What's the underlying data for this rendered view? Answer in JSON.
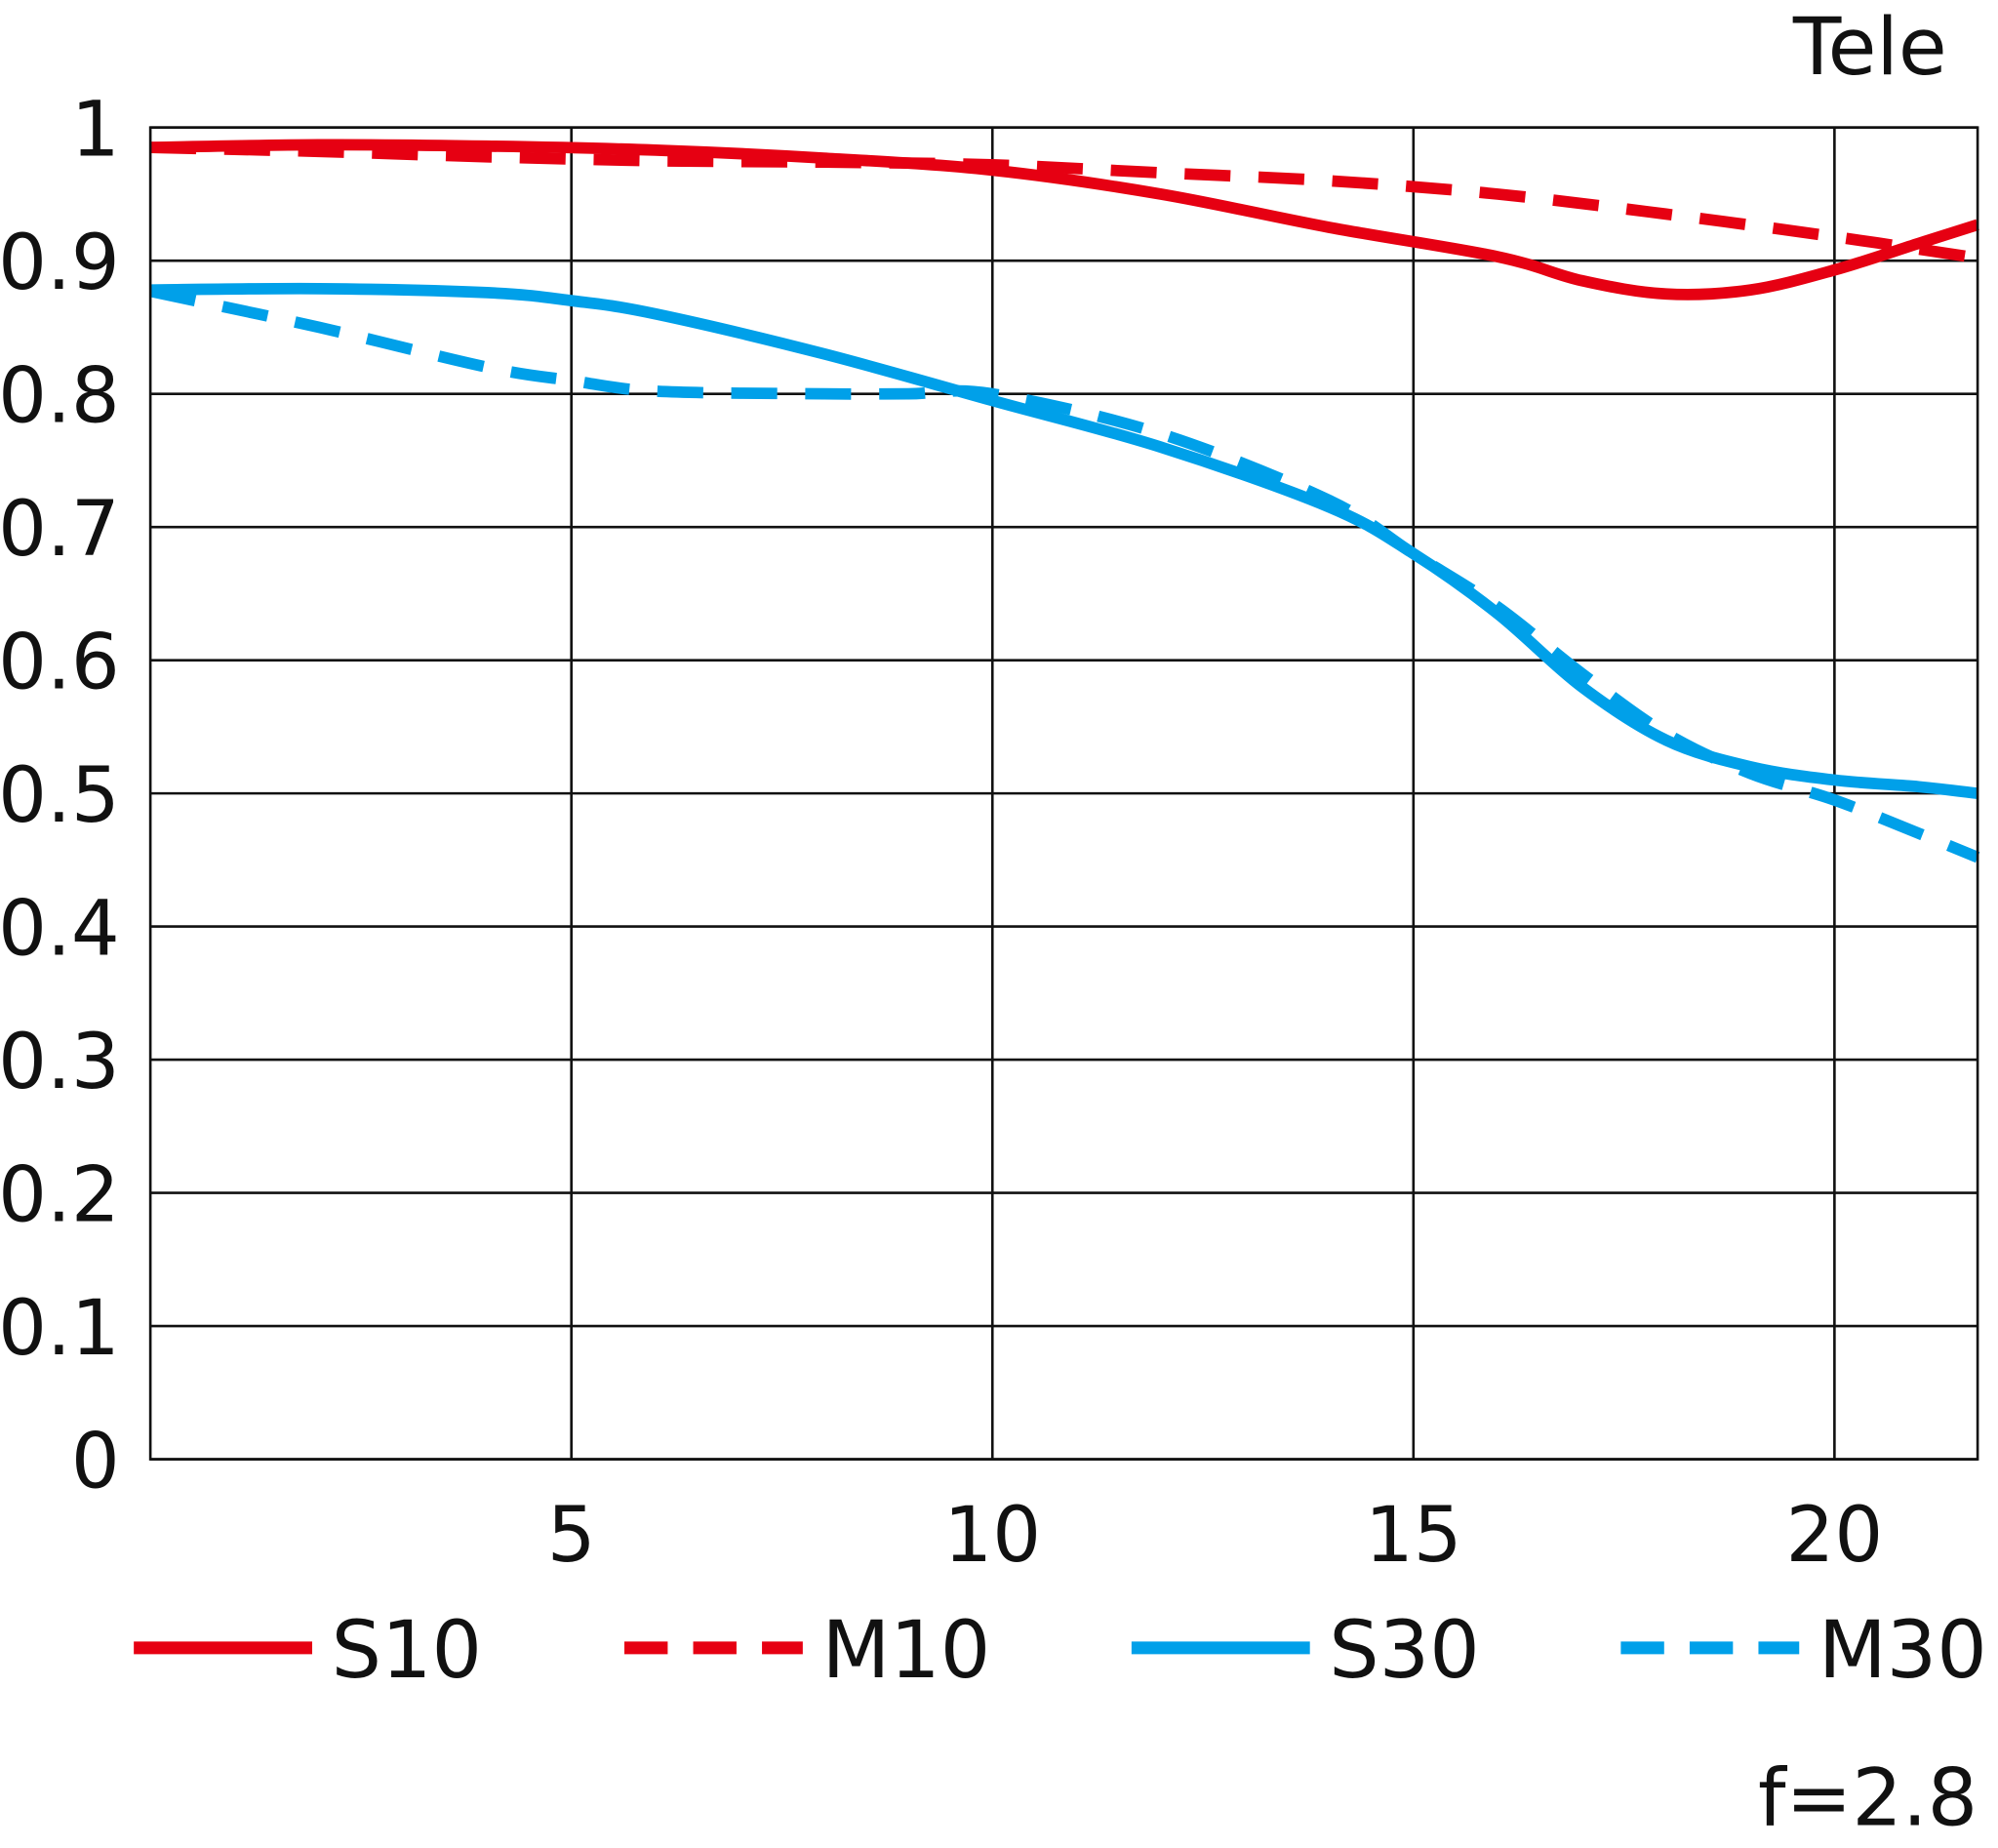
{
  "chart_data": {
    "type": "line",
    "title": "Tele",
    "annotation": "f=2.8",
    "xlim": [
      0,
      21.7
    ],
    "ylim": [
      0,
      1
    ],
    "xticks": [
      5,
      10,
      15,
      20
    ],
    "xtick_labels": [
      "5",
      "10",
      "15",
      "20"
    ],
    "yticks": [
      0,
      0.1,
      0.2,
      0.3,
      0.4,
      0.5,
      0.6,
      0.7,
      0.8,
      0.9,
      1
    ],
    "ytick_labels": [
      "0",
      "0.1",
      "0.2",
      "0.3",
      "0.4",
      "0.5",
      "0.6",
      "0.7",
      "0.8",
      "0.9",
      "1"
    ],
    "grid": true,
    "legend_placement": "bottom",
    "series": [
      {
        "name": "S10",
        "color": "#e60012",
        "dash": false,
        "x": [
          0,
          2,
          4,
          6,
          8,
          10,
          12,
          14,
          16,
          17,
          18,
          19,
          20,
          21,
          21.7
        ],
        "y": [
          0.985,
          0.987,
          0.986,
          0.983,
          0.977,
          0.968,
          0.95,
          0.925,
          0.903,
          0.885,
          0.875,
          0.878,
          0.893,
          0.913,
          0.927
        ]
      },
      {
        "name": "M10",
        "color": "#e60012",
        "dash": true,
        "x": [
          0,
          2,
          4,
          6,
          8,
          10,
          12,
          14,
          16,
          18,
          20,
          21.7
        ],
        "y": [
          0.985,
          0.982,
          0.978,
          0.975,
          0.974,
          0.972,
          0.966,
          0.96,
          0.95,
          0.935,
          0.918,
          0.902
        ]
      },
      {
        "name": "S30",
        "color": "#00a0e9",
        "dash": false,
        "x": [
          0,
          2,
          4,
          5,
          6,
          8,
          10,
          12,
          14,
          15,
          16,
          17,
          18,
          19,
          20,
          21,
          21.7
        ],
        "y": [
          0.878,
          0.879,
          0.876,
          0.87,
          0.86,
          0.83,
          0.795,
          0.76,
          0.715,
          0.68,
          0.635,
          0.58,
          0.54,
          0.52,
          0.51,
          0.505,
          0.5
        ]
      },
      {
        "name": "M30",
        "color": "#00a0e9",
        "dash": true,
        "x": [
          0,
          2,
          4,
          5,
          6,
          8,
          9,
          10,
          12,
          14,
          15,
          16,
          17,
          18,
          19,
          20,
          21,
          21.7
        ],
        "y": [
          0.877,
          0.85,
          0.82,
          0.81,
          0.802,
          0.8,
          0.8,
          0.8,
          0.77,
          0.72,
          0.68,
          0.64,
          0.59,
          0.545,
          0.515,
          0.495,
          0.47,
          0.452
        ]
      }
    ]
  }
}
